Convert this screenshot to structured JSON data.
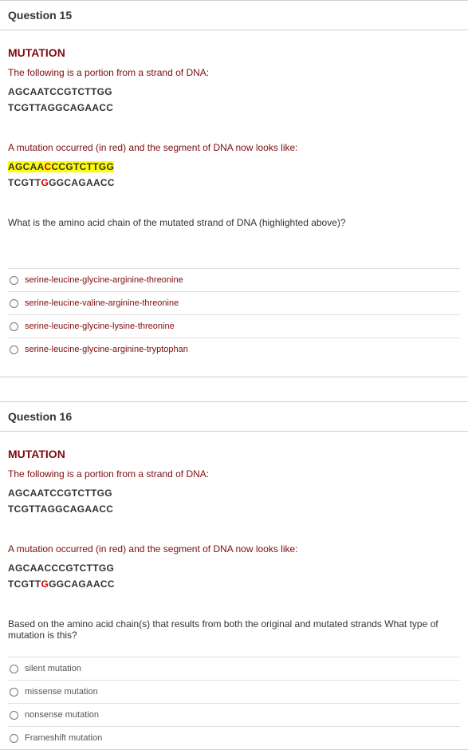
{
  "colors": {
    "maroon": "#7e0b0b",
    "text": "#333333",
    "border": "#d0d0d0",
    "option_border": "#e0e0e0",
    "highlight_bg": "#ffff00",
    "mut_red": "#cc0000",
    "background": "#ffffff"
  },
  "q15": {
    "header": "Question 15",
    "section_title": "MUTATION",
    "intro1": "The following is a portion from a strand of DNA:",
    "orig_strand1": "AGCAATCCGTCTTGG",
    "orig_strand2": "TCGTTAGGCAGAACC",
    "intro2": "A mutation occurred (in red) and the segment of DNA now looks like:",
    "mutated1": {
      "pre": "AGCAA",
      "red": "C",
      "post": "CCGTCTTGG"
    },
    "mutated2": {
      "pre": "TCGTT",
      "red": "G",
      "post": "GGCAGAACC"
    },
    "question_line": "What is the amino acid chain of the mutated strand of DNA (highlighted above)?",
    "options": [
      "serine-leucine-glycine-arginine-threonine",
      "serine-leucine-valine-arginine-threonine",
      "serine-leucine-glycine-lysine-threonine",
      "serine-leucine-glycine-arginine-tryptophan"
    ]
  },
  "q16": {
    "header": "Question 16",
    "section_title": "MUTATION",
    "intro1": "The following is a portion from a strand of DNA:",
    "orig_strand1": "AGCAATCCGTCTTGG",
    "orig_strand2": "TCGTTAGGCAGAACC",
    "intro2": "A mutation occurred (in red) and the segment of DNA now looks like:",
    "mutated1": {
      "pre": "AGCAACCCGTCTTGG",
      "red": "",
      "post": ""
    },
    "mutated2": {
      "pre": "TCGTT",
      "red": "G",
      "post": "GGCAGAACC"
    },
    "question_line": "Based on the amino acid chain(s) that results from both the original and mutated strands What type of mutation is this?",
    "options": [
      "silent mutation",
      "missense mutation",
      "nonsense mutation",
      "Frameshift mutation"
    ]
  }
}
